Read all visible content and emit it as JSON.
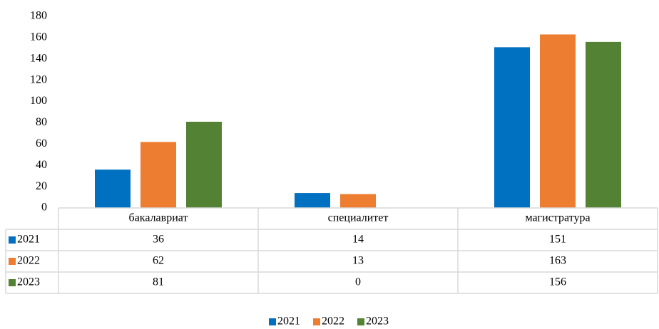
{
  "chart_data": {
    "type": "bar",
    "categories": [
      "бакалавриат",
      "специалитет",
      "магистратура"
    ],
    "series": [
      {
        "name": "2021",
        "color": "#0070c0",
        "values": [
          36,
          14,
          151
        ]
      },
      {
        "name": "2022",
        "color": "#ed7d31",
        "values": [
          62,
          13,
          163
        ]
      },
      {
        "name": "2023",
        "color": "#548235",
        "values": [
          81,
          0,
          156
        ]
      }
    ],
    "ylim": [
      0,
      180
    ],
    "yticks": [
      0,
      20,
      40,
      60,
      80,
      100,
      120,
      140,
      160,
      180
    ],
    "grid": false,
    "legend": "bottom",
    "data_table": true
  }
}
